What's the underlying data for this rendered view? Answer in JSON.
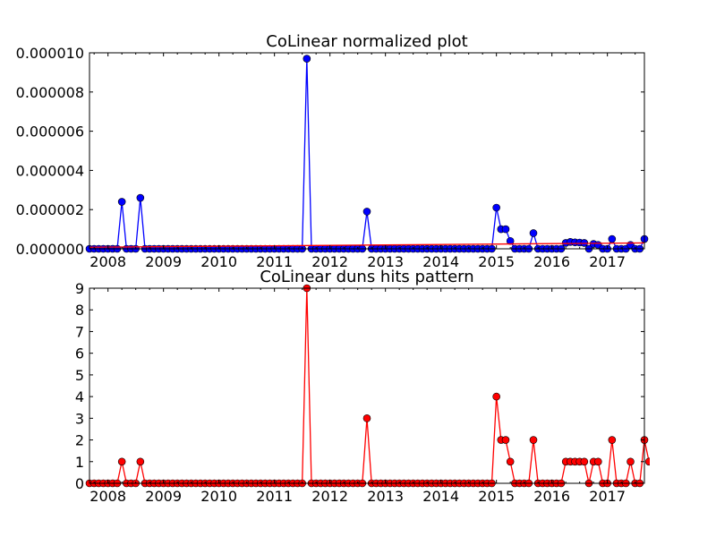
{
  "chart_data": [
    {
      "type": "line",
      "title": "CoLinear normalized plot",
      "xlabel": "",
      "ylabel": "",
      "xlim": [
        "2007-09",
        "2017-09"
      ],
      "ylim": [
        0,
        1e-05
      ],
      "yticks": [
        "0.000000",
        "0.000002",
        "0.000004",
        "0.000006",
        "0.000008",
        "0.000010"
      ],
      "xticks": [
        "2008",
        "2009",
        "2010",
        "2011",
        "2012",
        "2013",
        "2014",
        "2015",
        "2016",
        "2017"
      ],
      "grid": false,
      "legend": "none",
      "series": [
        {
          "color": "#0000ff",
          "marker": "circle",
          "x": [
            "2008-04",
            "2008-08",
            "2011-08",
            "2012-09",
            "2015-01",
            "2015-02",
            "2015-03",
            "2015-04",
            "2015-09",
            "2016-04",
            "2016-05",
            "2016-06",
            "2016-07",
            "2016-08",
            "2016-10",
            "2016-11",
            "2017-02",
            "2017-06",
            "2017-09"
          ],
          "values": [
            2.4e-06,
            2.6e-06,
            9.7e-06,
            1.9e-06,
            2.1e-06,
            1e-06,
            1e-06,
            4e-07,
            8e-07,
            3e-07,
            3.5e-07,
            3.3e-07,
            3.2e-07,
            3e-07,
            2.5e-07,
            2e-07,
            5e-07,
            2e-07,
            5e-07
          ]
        },
        {
          "color": "#ff0000",
          "marker": "none",
          "x": [
            "2007-09",
            "2017-09"
          ],
          "values": [
            8e-08,
            3e-07
          ]
        }
      ]
    },
    {
      "type": "line",
      "title": "CoLinear duns hits pattern",
      "xlabel": "",
      "ylabel": "",
      "xlim": [
        "2007-09",
        "2017-09"
      ],
      "ylim": [
        0,
        9
      ],
      "yticks": [
        "0",
        "1",
        "2",
        "3",
        "4",
        "5",
        "6",
        "7",
        "8",
        "9"
      ],
      "xticks": [
        "2008",
        "2009",
        "2010",
        "2011",
        "2012",
        "2013",
        "2014",
        "2015",
        "2016",
        "2017"
      ],
      "grid": false,
      "legend": "none",
      "series": [
        {
          "color": "#ff0000",
          "marker": "circle",
          "x": [
            "2008-04",
            "2008-08",
            "2011-08",
            "2012-09",
            "2015-01",
            "2015-02",
            "2015-03",
            "2015-04",
            "2015-09",
            "2016-04",
            "2016-05",
            "2016-06",
            "2016-07",
            "2016-08",
            "2016-10",
            "2016-11",
            "2017-02",
            "2017-06",
            "2017-09",
            "2017-10"
          ],
          "values": [
            1,
            1,
            9,
            3,
            4,
            2,
            2,
            1,
            2,
            1,
            1,
            1,
            1,
            1,
            1,
            1,
            2,
            1,
            2,
            1
          ]
        }
      ]
    }
  ]
}
